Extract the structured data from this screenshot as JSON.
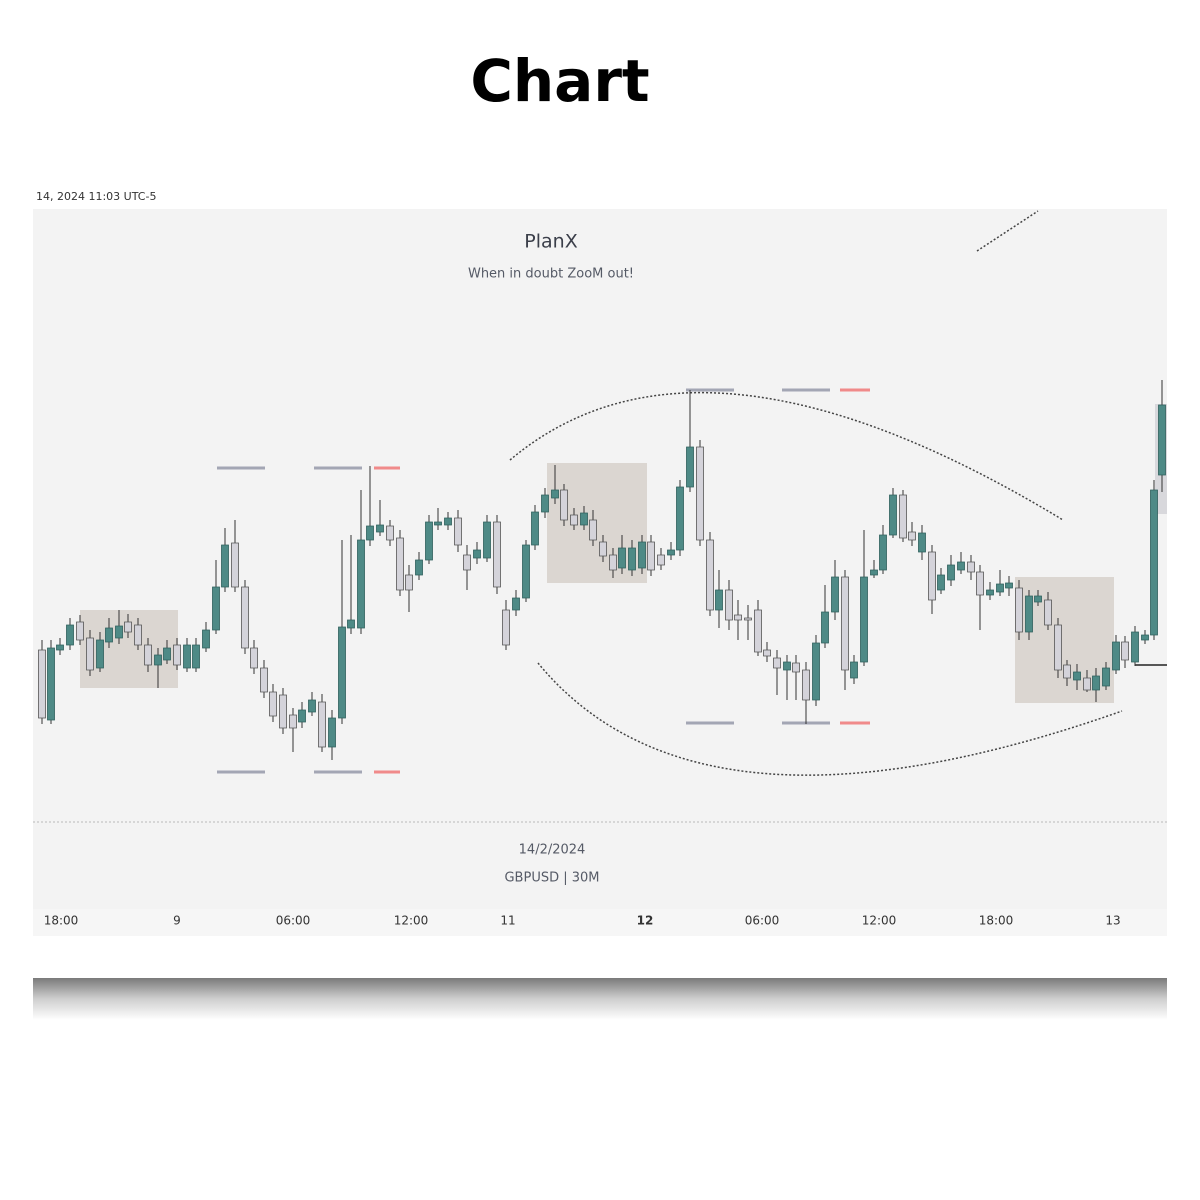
{
  "header": {
    "title": "Chart"
  },
  "chart": {
    "timestamp": "14, 2024 11:03 UTC-5",
    "watermark": {
      "title": "PlanX",
      "subtitle": "When in doubt ZooM out!"
    },
    "footer": {
      "date": "14/2/2024",
      "symbol": "GBPUSD | 30M"
    },
    "time_axis": [
      "18:00",
      "9",
      "06:00",
      "12:00",
      "11",
      "12",
      "06:00",
      "12:00",
      "18:00",
      "13"
    ]
  }
}
